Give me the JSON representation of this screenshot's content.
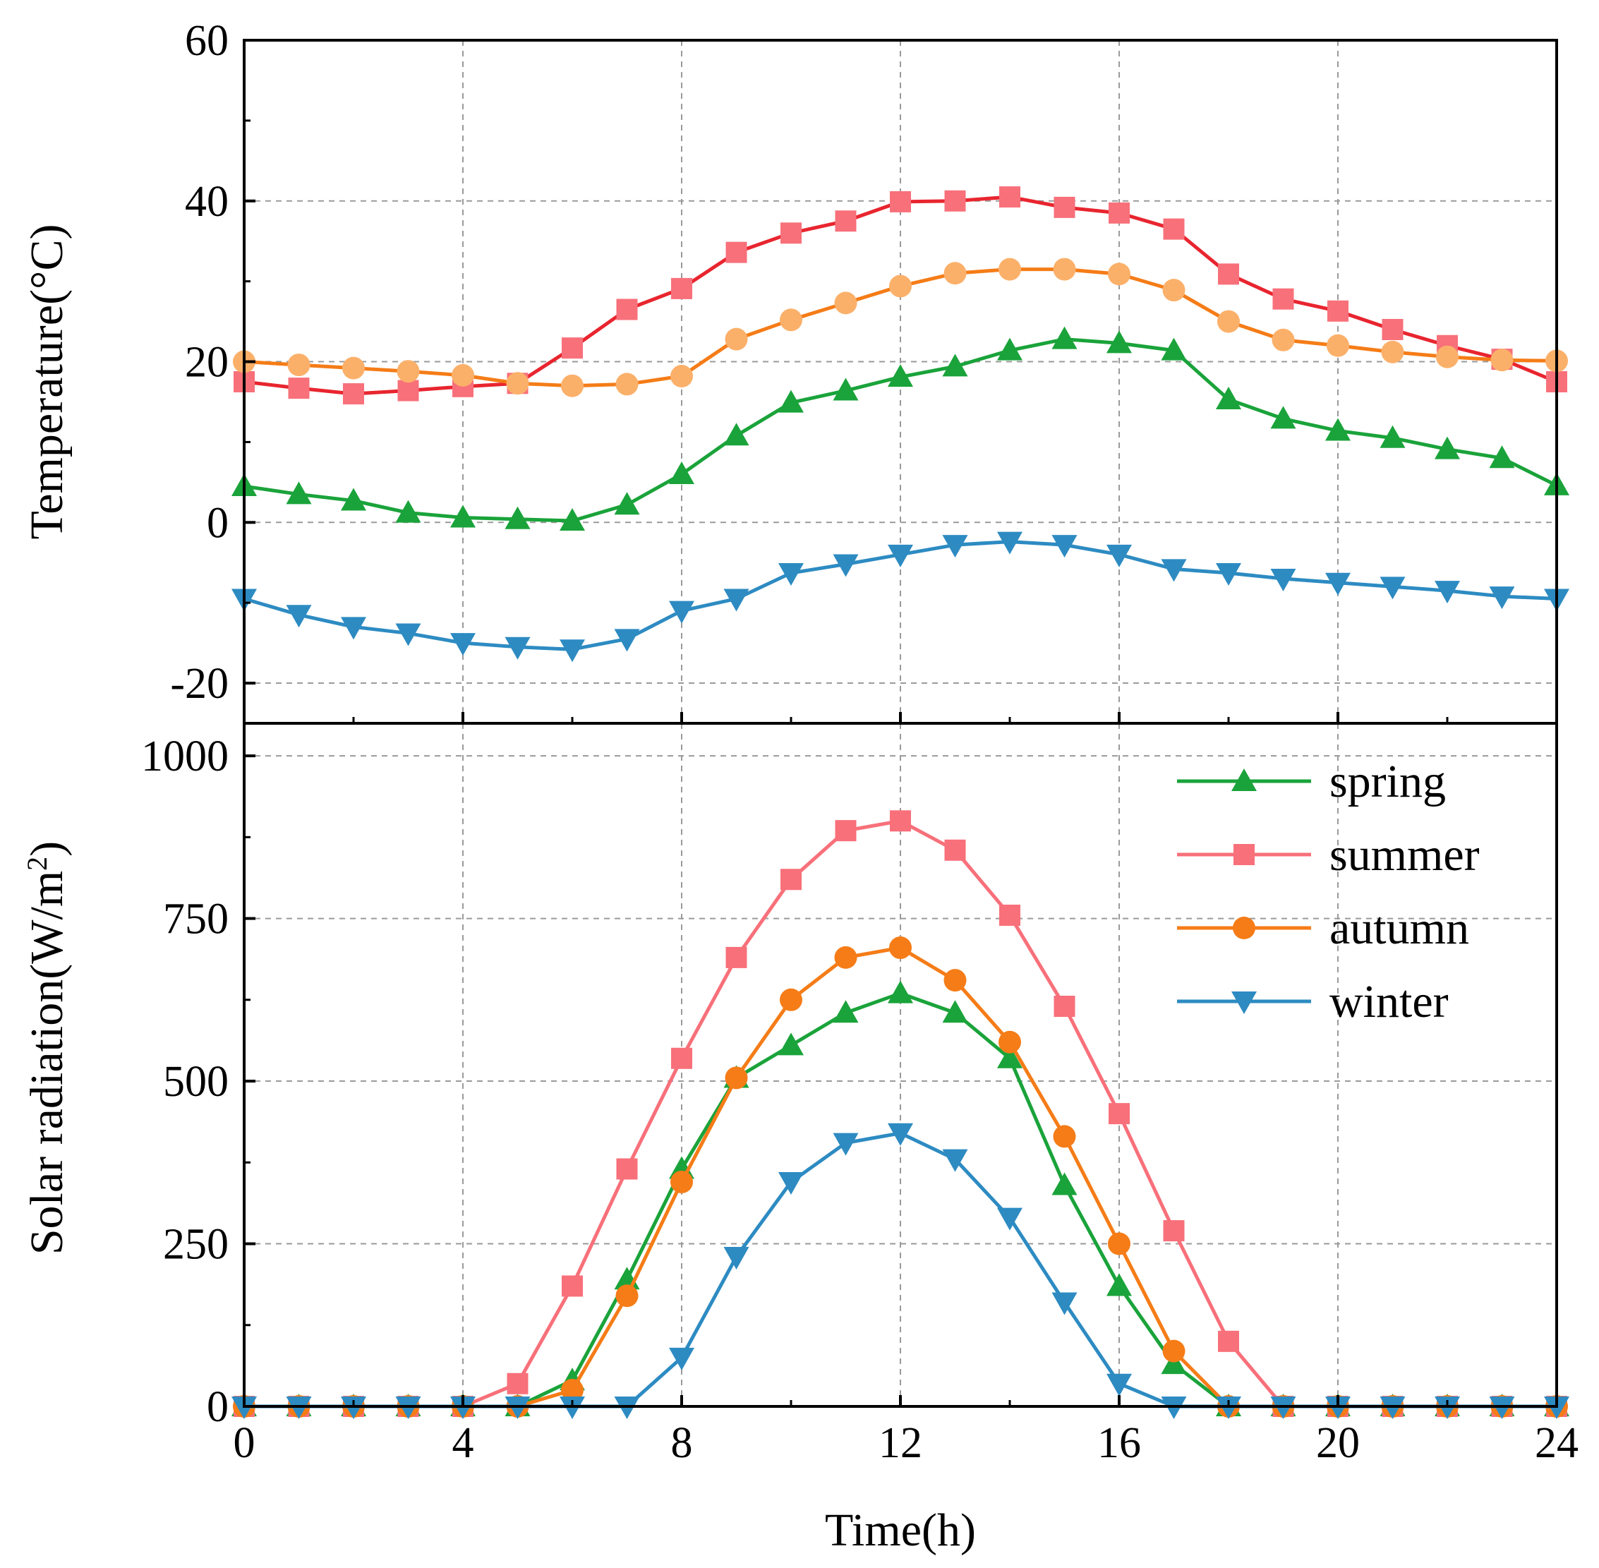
{
  "chart_data": [
    {
      "type": "line",
      "panel": "top",
      "title": "",
      "xlabel": "",
      "ylabel": "Temperature(°C)",
      "xlim": [
        0,
        24
      ],
      "ylim": [
        -25,
        60
      ],
      "yticks": [
        -20,
        0,
        20,
        40,
        60
      ],
      "grid": true,
      "x": [
        0,
        1,
        2,
        3,
        4,
        5,
        6,
        7,
        8,
        9,
        10,
        11,
        12,
        13,
        14,
        15,
        16,
        17,
        18,
        19,
        20,
        21,
        22,
        23,
        24
      ],
      "series": [
        {
          "name": "spring",
          "color": "#1aa33a",
          "line_color": "#1aa33a",
          "marker": "triangle-up",
          "values": [
            4.5,
            3.5,
            2.7,
            1.2,
            0.6,
            0.4,
            0.2,
            2.2,
            6.0,
            10.8,
            14.9,
            16.4,
            18.1,
            19.4,
            21.4,
            22.8,
            22.3,
            21.4,
            15.3,
            12.9,
            11.4,
            10.5,
            9.1,
            8.0,
            4.6
          ]
        },
        {
          "name": "summer",
          "color": "#f8707a",
          "line_color": "#e8252f",
          "marker": "square",
          "values": [
            17.5,
            16.7,
            16.0,
            16.4,
            16.9,
            17.3,
            21.7,
            26.5,
            29.1,
            33.6,
            36.0,
            37.5,
            39.9,
            40.0,
            40.5,
            39.2,
            38.5,
            36.5,
            30.9,
            27.8,
            26.3,
            24.0,
            22.0,
            20.3,
            17.5
          ]
        },
        {
          "name": "autumn",
          "color": "#fbb06a",
          "line_color": "#f57c17",
          "marker": "circle",
          "values": [
            20.0,
            19.6,
            19.2,
            18.8,
            18.3,
            17.3,
            17.0,
            17.2,
            18.2,
            22.8,
            25.2,
            27.3,
            29.4,
            31.0,
            31.5,
            31.5,
            30.9,
            28.9,
            25.0,
            22.7,
            22.0,
            21.2,
            20.6,
            20.2,
            20.1
          ]
        },
        {
          "name": "winter",
          "color": "#2d8bc2",
          "line_color": "#2d8bc2",
          "marker": "triangle-down",
          "values": [
            -9.5,
            -11.5,
            -13.0,
            -13.8,
            -15.0,
            -15.5,
            -15.8,
            -14.5,
            -11.0,
            -9.5,
            -6.3,
            -5.2,
            -4.0,
            -2.8,
            -2.4,
            -2.8,
            -4.0,
            -5.8,
            -6.3,
            -7.0,
            -7.5,
            -8.0,
            -8.5,
            -9.2,
            -9.5
          ]
        }
      ]
    },
    {
      "type": "line",
      "panel": "bottom",
      "title": "",
      "xlabel": "Time(h)",
      "ylabel": "Solar radiation(W/m",
      "ylabel_sup": "2",
      "ylabel_end": ")",
      "xlim": [
        0,
        24
      ],
      "ylim": [
        0,
        1050
      ],
      "xticks": [
        0,
        4,
        8,
        12,
        16,
        20,
        24
      ],
      "yticks": [
        0,
        250,
        500,
        750,
        1000
      ],
      "grid": true,
      "legend_position": "top-right",
      "x": [
        0,
        1,
        2,
        3,
        4,
        5,
        6,
        7,
        8,
        9,
        10,
        11,
        12,
        13,
        14,
        15,
        16,
        17,
        18,
        19,
        20,
        21,
        22,
        23,
        24
      ],
      "series": [
        {
          "name": "spring",
          "color": "#1aa33a",
          "line_color": "#1aa33a",
          "marker": "triangle-up",
          "values": [
            0,
            0,
            0,
            0,
            0,
            0,
            40,
            195,
            365,
            505,
            555,
            605,
            635,
            605,
            535,
            340,
            185,
            65,
            0,
            0,
            0,
            0,
            0,
            0,
            0
          ]
        },
        {
          "name": "summer",
          "color": "#f8707a",
          "line_color": "#f8707a",
          "marker": "square",
          "values": [
            0,
            0,
            0,
            0,
            0,
            35,
            185,
            365,
            535,
            690,
            810,
            885,
            900,
            855,
            755,
            615,
            450,
            270,
            100,
            0,
            0,
            0,
            0,
            0,
            0
          ]
        },
        {
          "name": "autumn",
          "color": "#f57c17",
          "line_color": "#f57c17",
          "marker": "circle",
          "values": [
            0,
            0,
            0,
            0,
            0,
            0,
            25,
            170,
            345,
            505,
            625,
            690,
            705,
            655,
            560,
            415,
            250,
            85,
            0,
            0,
            0,
            0,
            0,
            0,
            0
          ]
        },
        {
          "name": "winter",
          "color": "#2d8bc2",
          "line_color": "#2d8bc2",
          "marker": "triangle-down",
          "values": [
            0,
            0,
            0,
            0,
            0,
            0,
            0,
            0,
            75,
            230,
            345,
            405,
            420,
            380,
            290,
            160,
            35,
            0,
            0,
            0,
            0,
            0,
            0,
            0,
            0
          ]
        }
      ]
    }
  ]
}
